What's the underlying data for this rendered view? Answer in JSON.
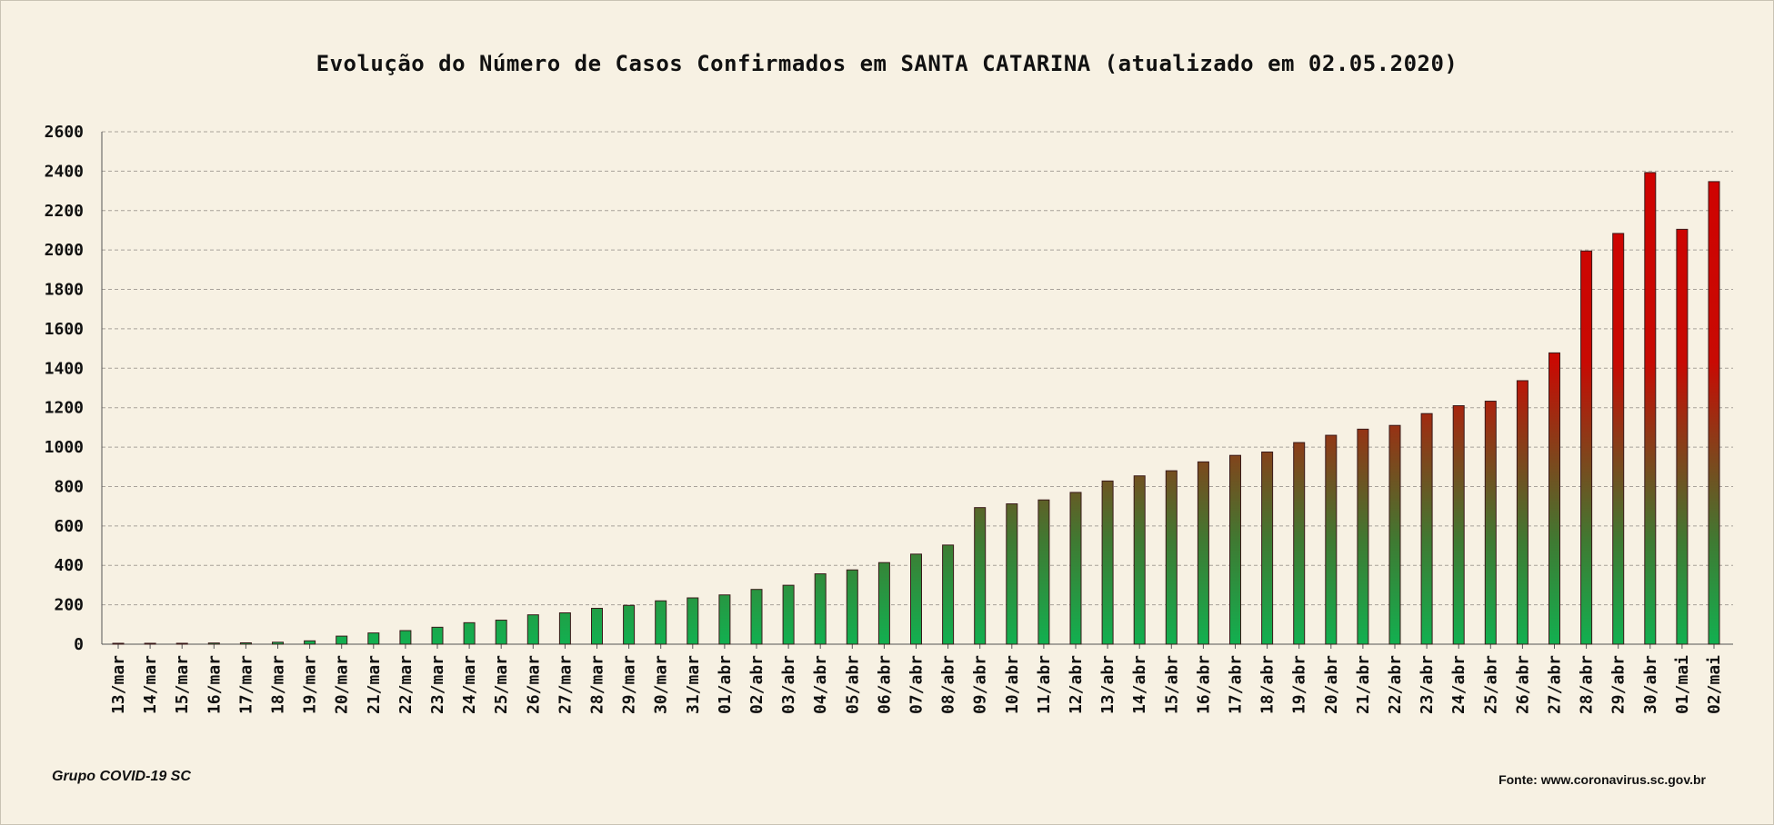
{
  "chart_data": {
    "type": "bar",
    "title": "Evolução do Número de Casos Confirmados em SANTA CATARINA (atualizado em 02.05.2020)",
    "xlabel": "",
    "ylabel": "",
    "ylim": [
      0,
      2600
    ],
    "yticks": [
      0,
      200,
      400,
      600,
      800,
      1000,
      1200,
      1400,
      1600,
      1800,
      2000,
      2200,
      2400,
      2600
    ],
    "grid": true,
    "categories": [
      "13/mar",
      "14/mar",
      "15/mar",
      "16/mar",
      "17/mar",
      "18/mar",
      "19/mar",
      "20/mar",
      "21/mar",
      "22/mar",
      "23/mar",
      "24/mar",
      "25/mar",
      "26/mar",
      "27/mar",
      "28/mar",
      "29/mar",
      "30/mar",
      "31/mar",
      "01/abr",
      "02/abr",
      "03/abr",
      "04/abr",
      "05/abr",
      "06/abr",
      "07/abr",
      "08/abr",
      "09/abr",
      "10/abr",
      "11/abr",
      "12/abr",
      "13/abr",
      "14/abr",
      "15/abr",
      "16/abr",
      "17/abr",
      "18/abr",
      "19/abr",
      "20/abr",
      "21/abr",
      "22/abr",
      "23/abr",
      "24/abr",
      "25/abr",
      "26/abr",
      "27/abr",
      "28/abr",
      "29/abr",
      "30/abr",
      "01/mai",
      "02/mai"
    ],
    "values": [
      2,
      3,
      4,
      6,
      7,
      10,
      17,
      41,
      57,
      69,
      86,
      109,
      122,
      149,
      159,
      182,
      197,
      220,
      235,
      250,
      278,
      299,
      357,
      377,
      414,
      457,
      503,
      693,
      712,
      732,
      770,
      828,
      854,
      880,
      925,
      958,
      975,
      1023,
      1060,
      1091,
      1110,
      1170,
      1210,
      1233,
      1337,
      1478,
      1995,
      2084,
      2393,
      2105,
      2347
    ],
    "colors": {
      "top": "#d10000",
      "bottom": "#12b050",
      "edge": "#3a1a1a",
      "grid": "#a8a29a"
    }
  },
  "footer": {
    "left": "Grupo COVID-19 SC",
    "right": "Fonte: www.coronavirus.sc.gov.br"
  }
}
